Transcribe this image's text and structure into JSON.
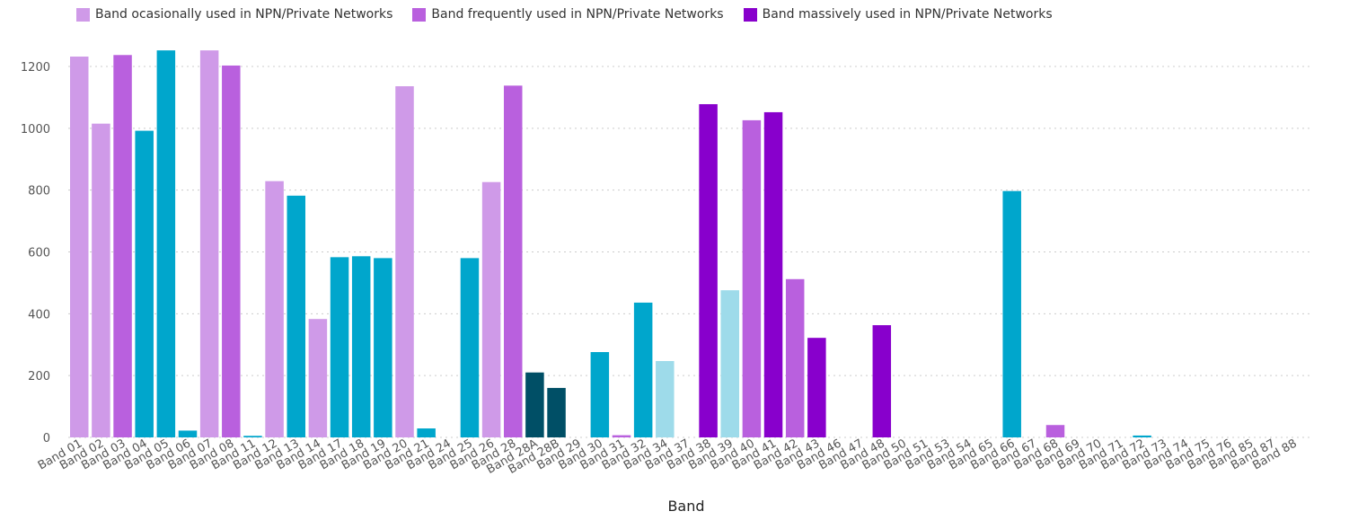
{
  "legend": [
    {
      "label": "Band ocasionally used in NPN/Private Networks",
      "color": "#cf9ae8"
    },
    {
      "label": "Band frequently used in NPN/Private Networks",
      "color": "#b960de"
    },
    {
      "label": "Band massively used in NPN/Private Networks",
      "color": "#8800cc"
    }
  ],
  "chart_data": {
    "type": "bar",
    "xlabel": "Band",
    "ylabel": "",
    "ylim": [
      0,
      1300
    ],
    "yticks": [
      0,
      200,
      400,
      600,
      800,
      1000,
      1200
    ],
    "grid": "horizontal-dotted",
    "legend_position": "top-left",
    "categories": [
      "Band 01",
      "Band 02",
      "Band 03",
      "Band 04",
      "Band 05",
      "Band 06",
      "Band 07",
      "Band 08",
      "Band 11",
      "Band 12",
      "Band 13",
      "Band 14",
      "Band 17",
      "Band 18",
      "Band 19",
      "Band 20",
      "Band 21",
      "Band 24",
      "Band 25",
      "Band 26",
      "Band 28",
      "Band 28A",
      "Band 28B",
      "Band 29",
      "Band 30",
      "Band 31",
      "Band 32",
      "Band 34",
      "Band 37",
      "Band 38",
      "Band 39",
      "Band 40",
      "Band 41",
      "Band 42",
      "Band 43",
      "Band 46",
      "Band 47",
      "Band 48",
      "Band 50",
      "Band 51",
      "Band 53",
      "Band 54",
      "Band 65",
      "Band 66",
      "Band 67",
      "Band 68",
      "Band 69",
      "Band 70",
      "Band 71",
      "Band 72",
      "Band 73",
      "Band 74",
      "Band 75",
      "Band 76",
      "Band 85",
      "Band 87",
      "Band 88"
    ],
    "values": [
      1232,
      1015,
      1237,
      992,
      1252,
      22,
      1252,
      1203,
      5,
      829,
      782,
      383,
      583,
      586,
      580,
      1136,
      29,
      0,
      580,
      826,
      1138,
      210,
      160,
      0,
      276,
      7,
      436,
      247,
      0,
      1078,
      476,
      1026,
      1052,
      512,
      322,
      0,
      0,
      363,
      0,
      0,
      0,
      0,
      0,
      797,
      0,
      40,
      0,
      0,
      0,
      6,
      0,
      0,
      0,
      0,
      0,
      0,
      0
    ],
    "bar_colors": [
      "#cf9ae8",
      "#cf9ae8",
      "#b960de",
      "#00a6cc",
      "#00a6cc",
      "#00a6cc",
      "#cf9ae8",
      "#b960de",
      "#00a6cc",
      "#cf9ae8",
      "#00a6cc",
      "#cf9ae8",
      "#00a6cc",
      "#00a6cc",
      "#00a6cc",
      "#cf9ae8",
      "#00a6cc",
      "#00a6cc",
      "#00a6cc",
      "#cf9ae8",
      "#b960de",
      "#004f66",
      "#004f66",
      "#00a6cc",
      "#00a6cc",
      "#b960de",
      "#00a6cc",
      "#9edbea",
      "#00a6cc",
      "#8800cc",
      "#9edbea",
      "#b960de",
      "#8800cc",
      "#b960de",
      "#8800cc",
      "#00a6cc",
      "#00a6cc",
      "#8800cc",
      "#00a6cc",
      "#00a6cc",
      "#00a6cc",
      "#00a6cc",
      "#00a6cc",
      "#00a6cc",
      "#00a6cc",
      "#b960de",
      "#00a6cc",
      "#00a6cc",
      "#00a6cc",
      "#00a6cc",
      "#00a6cc",
      "#00a6cc",
      "#00a6cc",
      "#00a6cc",
      "#00a6cc",
      "#00a6cc",
      "#00a6cc"
    ]
  }
}
